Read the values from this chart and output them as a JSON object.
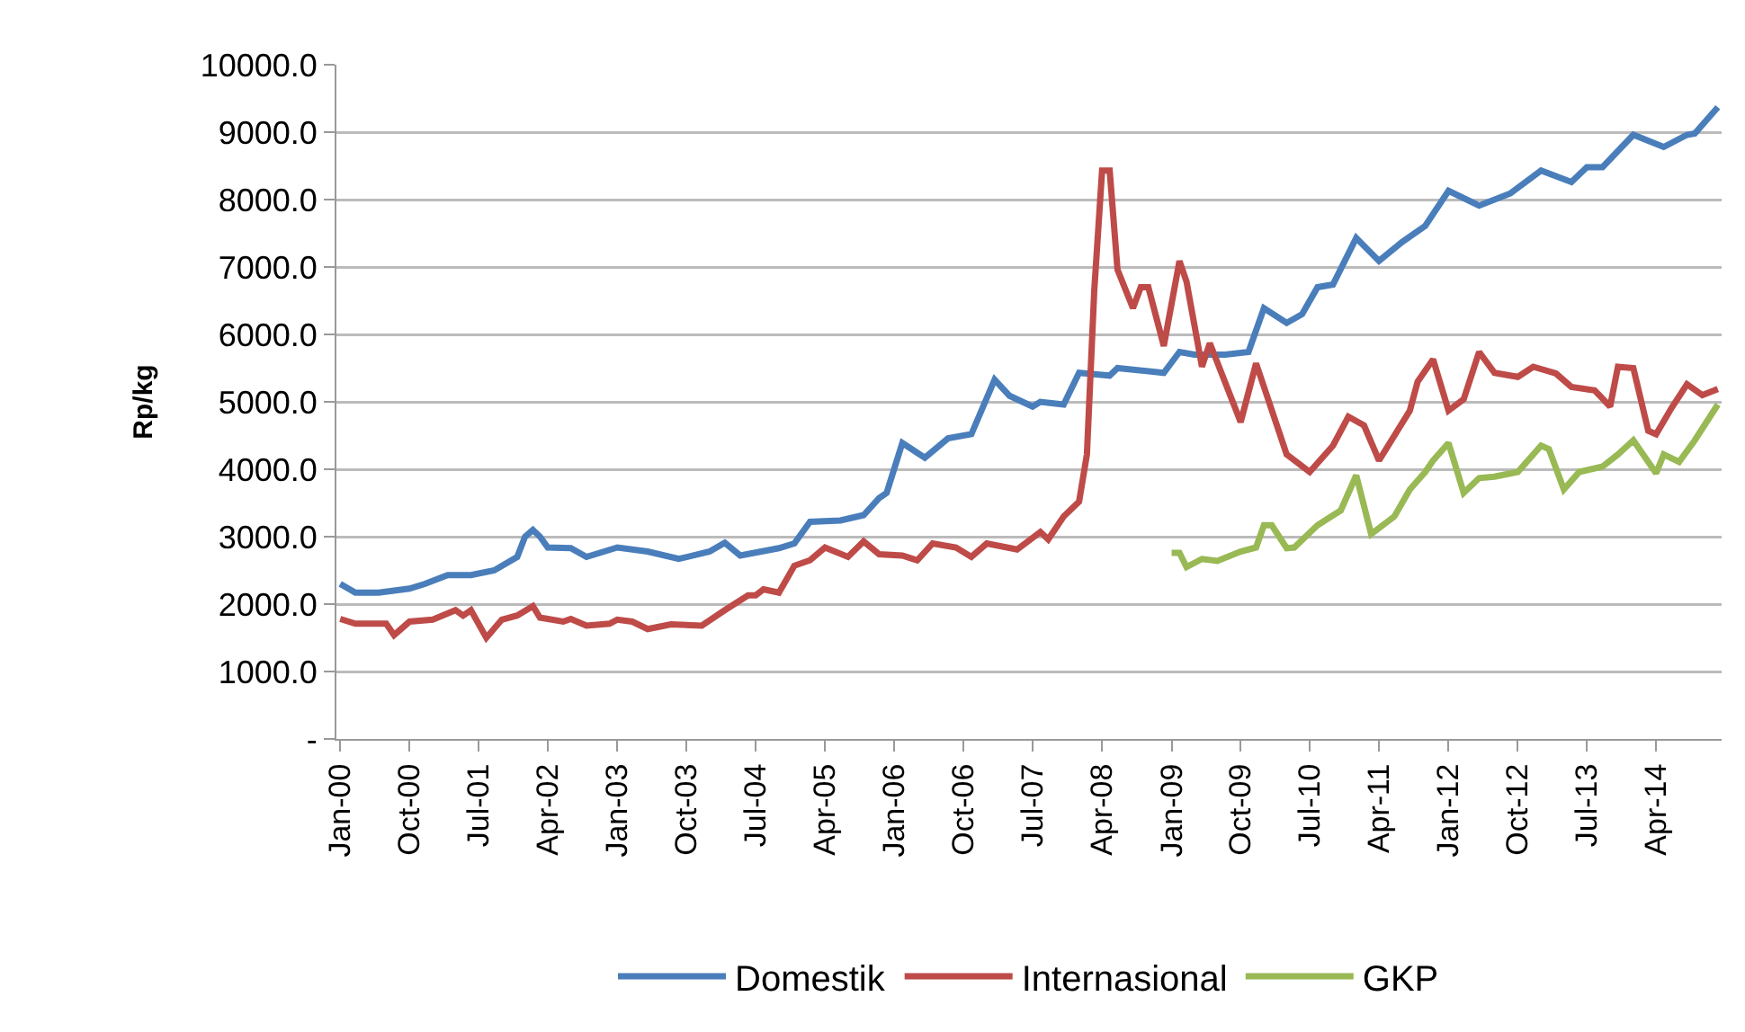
{
  "chart_data": {
    "type": "line",
    "ylabel": "Rp/kg",
    "xlim": [
      "1999-12-17",
      "2014-12-16"
    ],
    "xticks": [
      {
        "value": "2000-01",
        "label": "Jan-00"
      },
      {
        "value": "2000-10",
        "label": "Oct-00"
      },
      {
        "value": "2001-07",
        "label": "Jul-01"
      },
      {
        "value": "2002-04",
        "label": "Apr-02"
      },
      {
        "value": "2003-01",
        "label": "Jan-03"
      },
      {
        "value": "2003-10",
        "label": "Oct-03"
      },
      {
        "value": "2004-07",
        "label": "Jul-04"
      },
      {
        "value": "2005-04",
        "label": "Apr-05"
      },
      {
        "value": "2006-01",
        "label": "Jan-06"
      },
      {
        "value": "2006-10",
        "label": "Oct-06"
      },
      {
        "value": "2007-07",
        "label": "Jul-07"
      },
      {
        "value": "2008-04",
        "label": "Apr-08"
      },
      {
        "value": "2009-01",
        "label": "Jan-09"
      },
      {
        "value": "2009-10",
        "label": "Oct-09"
      },
      {
        "value": "2010-07",
        "label": "Jul-10"
      },
      {
        "value": "2011-04",
        "label": "Apr-11"
      },
      {
        "value": "2012-01",
        "label": "Jan-12"
      },
      {
        "value": "2012-10",
        "label": "Oct-12"
      },
      {
        "value": "2013-07",
        "label": "Jul-13"
      },
      {
        "value": "2014-04",
        "label": "Apr-14"
      }
    ],
    "ylim": [
      0,
      10000
    ],
    "yticks": [
      {
        "value": 0,
        "label": "-"
      },
      {
        "value": 1000,
        "label": "1000.0"
      },
      {
        "value": 2000,
        "label": "2000.0"
      },
      {
        "value": 3000,
        "label": "3000.0"
      },
      {
        "value": 4000,
        "label": "4000.0"
      },
      {
        "value": 5000,
        "label": "5000.0"
      },
      {
        "value": 6000,
        "label": "6000.0"
      },
      {
        "value": 7000,
        "label": "7000.0"
      },
      {
        "value": 8000,
        "label": "8000.0"
      },
      {
        "value": 9000,
        "label": "9000.0"
      },
      {
        "value": 10000,
        "label": "10000.0"
      }
    ],
    "grid": "y",
    "legend": "bottom",
    "marker": "none",
    "line_style": "solid",
    "series": [
      {
        "name": "Domestik",
        "color": "#4a7ebb",
        "x": [
          "2000-01",
          "2000-03",
          "2000-06",
          "2000-10",
          "2000-12",
          "2001-03",
          "2001-06",
          "2001-09",
          "2001-12",
          "2002-01",
          "2002-02",
          "2002-03",
          "2002-04",
          "2002-07",
          "2002-09",
          "2003-01",
          "2003-05",
          "2003-09",
          "2004-01",
          "2004-03",
          "2004-05",
          "2004-10",
          "2004-12",
          "2005-02",
          "2005-06",
          "2005-09",
          "2005-11",
          "2005-12",
          "2006-02",
          "2006-05",
          "2006-08",
          "2006-11",
          "2007-02",
          "2007-04",
          "2007-07",
          "2007-08",
          "2007-11",
          "2008-01",
          "2008-05",
          "2008-06",
          "2008-12",
          "2009-02",
          "2009-04",
          "2009-08",
          "2009-11",
          "2010-01",
          "2010-04",
          "2010-06",
          "2010-08",
          "2010-10",
          "2011-01",
          "2011-04",
          "2011-07",
          "2011-10",
          "2012-01",
          "2012-05",
          "2012-09",
          "2013-01",
          "2013-05",
          "2013-07",
          "2013-09",
          "2014-01",
          "2014-05",
          "2014-08",
          "2014-09",
          "2014-12"
        ],
        "values": [
          2300,
          2170,
          2170,
          2230,
          2300,
          2430,
          2430,
          2500,
          2700,
          3000,
          3100,
          3000,
          2840,
          2830,
          2700,
          2840,
          2780,
          2670,
          2780,
          2910,
          2720,
          2830,
          2900,
          3220,
          3240,
          3320,
          3570,
          3650,
          4390,
          4170,
          4460,
          4520,
          5330,
          5090,
          4930,
          5000,
          4960,
          5430,
          5390,
          5500,
          5430,
          5740,
          5700,
          5700,
          5740,
          6390,
          6170,
          6300,
          6700,
          6740,
          7430,
          7090,
          7370,
          7610,
          8130,
          7910,
          8090,
          8430,
          8260,
          8480,
          8480,
          8960,
          8780,
          8960,
          8980,
          9370
        ]
      },
      {
        "name": "Internasional",
        "color": "#be4b48",
        "x": [
          "2000-01",
          "2000-03",
          "2000-07",
          "2000-08",
          "2000-10",
          "2001-01",
          "2001-04",
          "2001-05",
          "2001-06",
          "2001-08",
          "2001-10",
          "2001-12",
          "2002-02",
          "2002-03",
          "2002-06",
          "2002-07",
          "2002-09",
          "2002-12",
          "2003-01",
          "2003-03",
          "2003-05",
          "2003-08",
          "2003-12",
          "2004-03",
          "2004-06",
          "2004-07",
          "2004-08",
          "2004-10",
          "2004-12",
          "2005-02",
          "2005-04",
          "2005-07",
          "2005-09",
          "2005-11",
          "2006-02",
          "2006-04",
          "2006-06",
          "2006-09",
          "2006-11",
          "2007-01",
          "2007-05",
          "2007-08",
          "2007-09",
          "2007-11",
          "2008-01",
          "2008-02",
          "2008-03",
          "2008-04",
          "2008-05",
          "2008-06",
          "2008-08",
          "2008-09",
          "2008-10",
          "2008-12",
          "2009-02",
          "2009-03",
          "2009-05",
          "2009-06",
          "2009-10",
          "2009-12",
          "2010-04",
          "2010-07",
          "2010-10",
          "2010-12",
          "2011-02",
          "2011-04",
          "2011-08",
          "2011-09",
          "2011-11",
          "2012-01",
          "2012-03",
          "2012-05",
          "2012-07",
          "2012-10",
          "2012-12",
          "2013-03",
          "2013-05",
          "2013-08",
          "2013-10",
          "2013-11",
          "2014-01",
          "2014-03",
          "2014-04",
          "2014-06",
          "2014-08",
          "2014-10",
          "2014-12"
        ],
        "values": [
          1780,
          1710,
          1710,
          1540,
          1740,
          1770,
          1910,
          1830,
          1910,
          1500,
          1770,
          1830,
          1970,
          1800,
          1740,
          1780,
          1680,
          1710,
          1770,
          1740,
          1630,
          1700,
          1680,
          1910,
          2130,
          2130,
          2220,
          2170,
          2570,
          2650,
          2840,
          2700,
          2930,
          2740,
          2720,
          2650,
          2900,
          2840,
          2700,
          2900,
          2810,
          3070,
          2960,
          3300,
          3520,
          4220,
          6650,
          8430,
          8430,
          6960,
          6390,
          6700,
          6700,
          5830,
          7090,
          6780,
          5520,
          5870,
          4700,
          5570,
          4220,
          3960,
          4350,
          4780,
          4650,
          4130,
          4870,
          5300,
          5630,
          4870,
          5040,
          5740,
          5430,
          5370,
          5520,
          5420,
          5220,
          5170,
          4930,
          5520,
          5500,
          4570,
          4520,
          4910,
          5260,
          5100,
          5190
        ]
      },
      {
        "name": "GKP",
        "color": "#98b954",
        "x": [
          "2009-01",
          "2009-02",
          "2009-03",
          "2009-05",
          "2009-07",
          "2009-10",
          "2009-12",
          "2010-01",
          "2010-02",
          "2010-04",
          "2010-05",
          "2010-08",
          "2010-11",
          "2011-01",
          "2011-03",
          "2011-06",
          "2011-08",
          "2011-10",
          "2011-11",
          "2012-01",
          "2012-03",
          "2012-05",
          "2012-07",
          "2012-10",
          "2013-01",
          "2013-02",
          "2013-04",
          "2013-06",
          "2013-09",
          "2013-11",
          "2014-01",
          "2014-04",
          "2014-05",
          "2014-07",
          "2014-09",
          "2014-12"
        ],
        "values": [
          2760,
          2760,
          2550,
          2670,
          2640,
          2780,
          2840,
          3170,
          3170,
          2830,
          2840,
          3170,
          3390,
          3910,
          3040,
          3300,
          3700,
          3960,
          4130,
          4390,
          3650,
          3870,
          3890,
          3960,
          4350,
          4300,
          3700,
          3960,
          4040,
          4220,
          4430,
          3940,
          4220,
          4110,
          4430,
          4960
        ]
      }
    ]
  }
}
